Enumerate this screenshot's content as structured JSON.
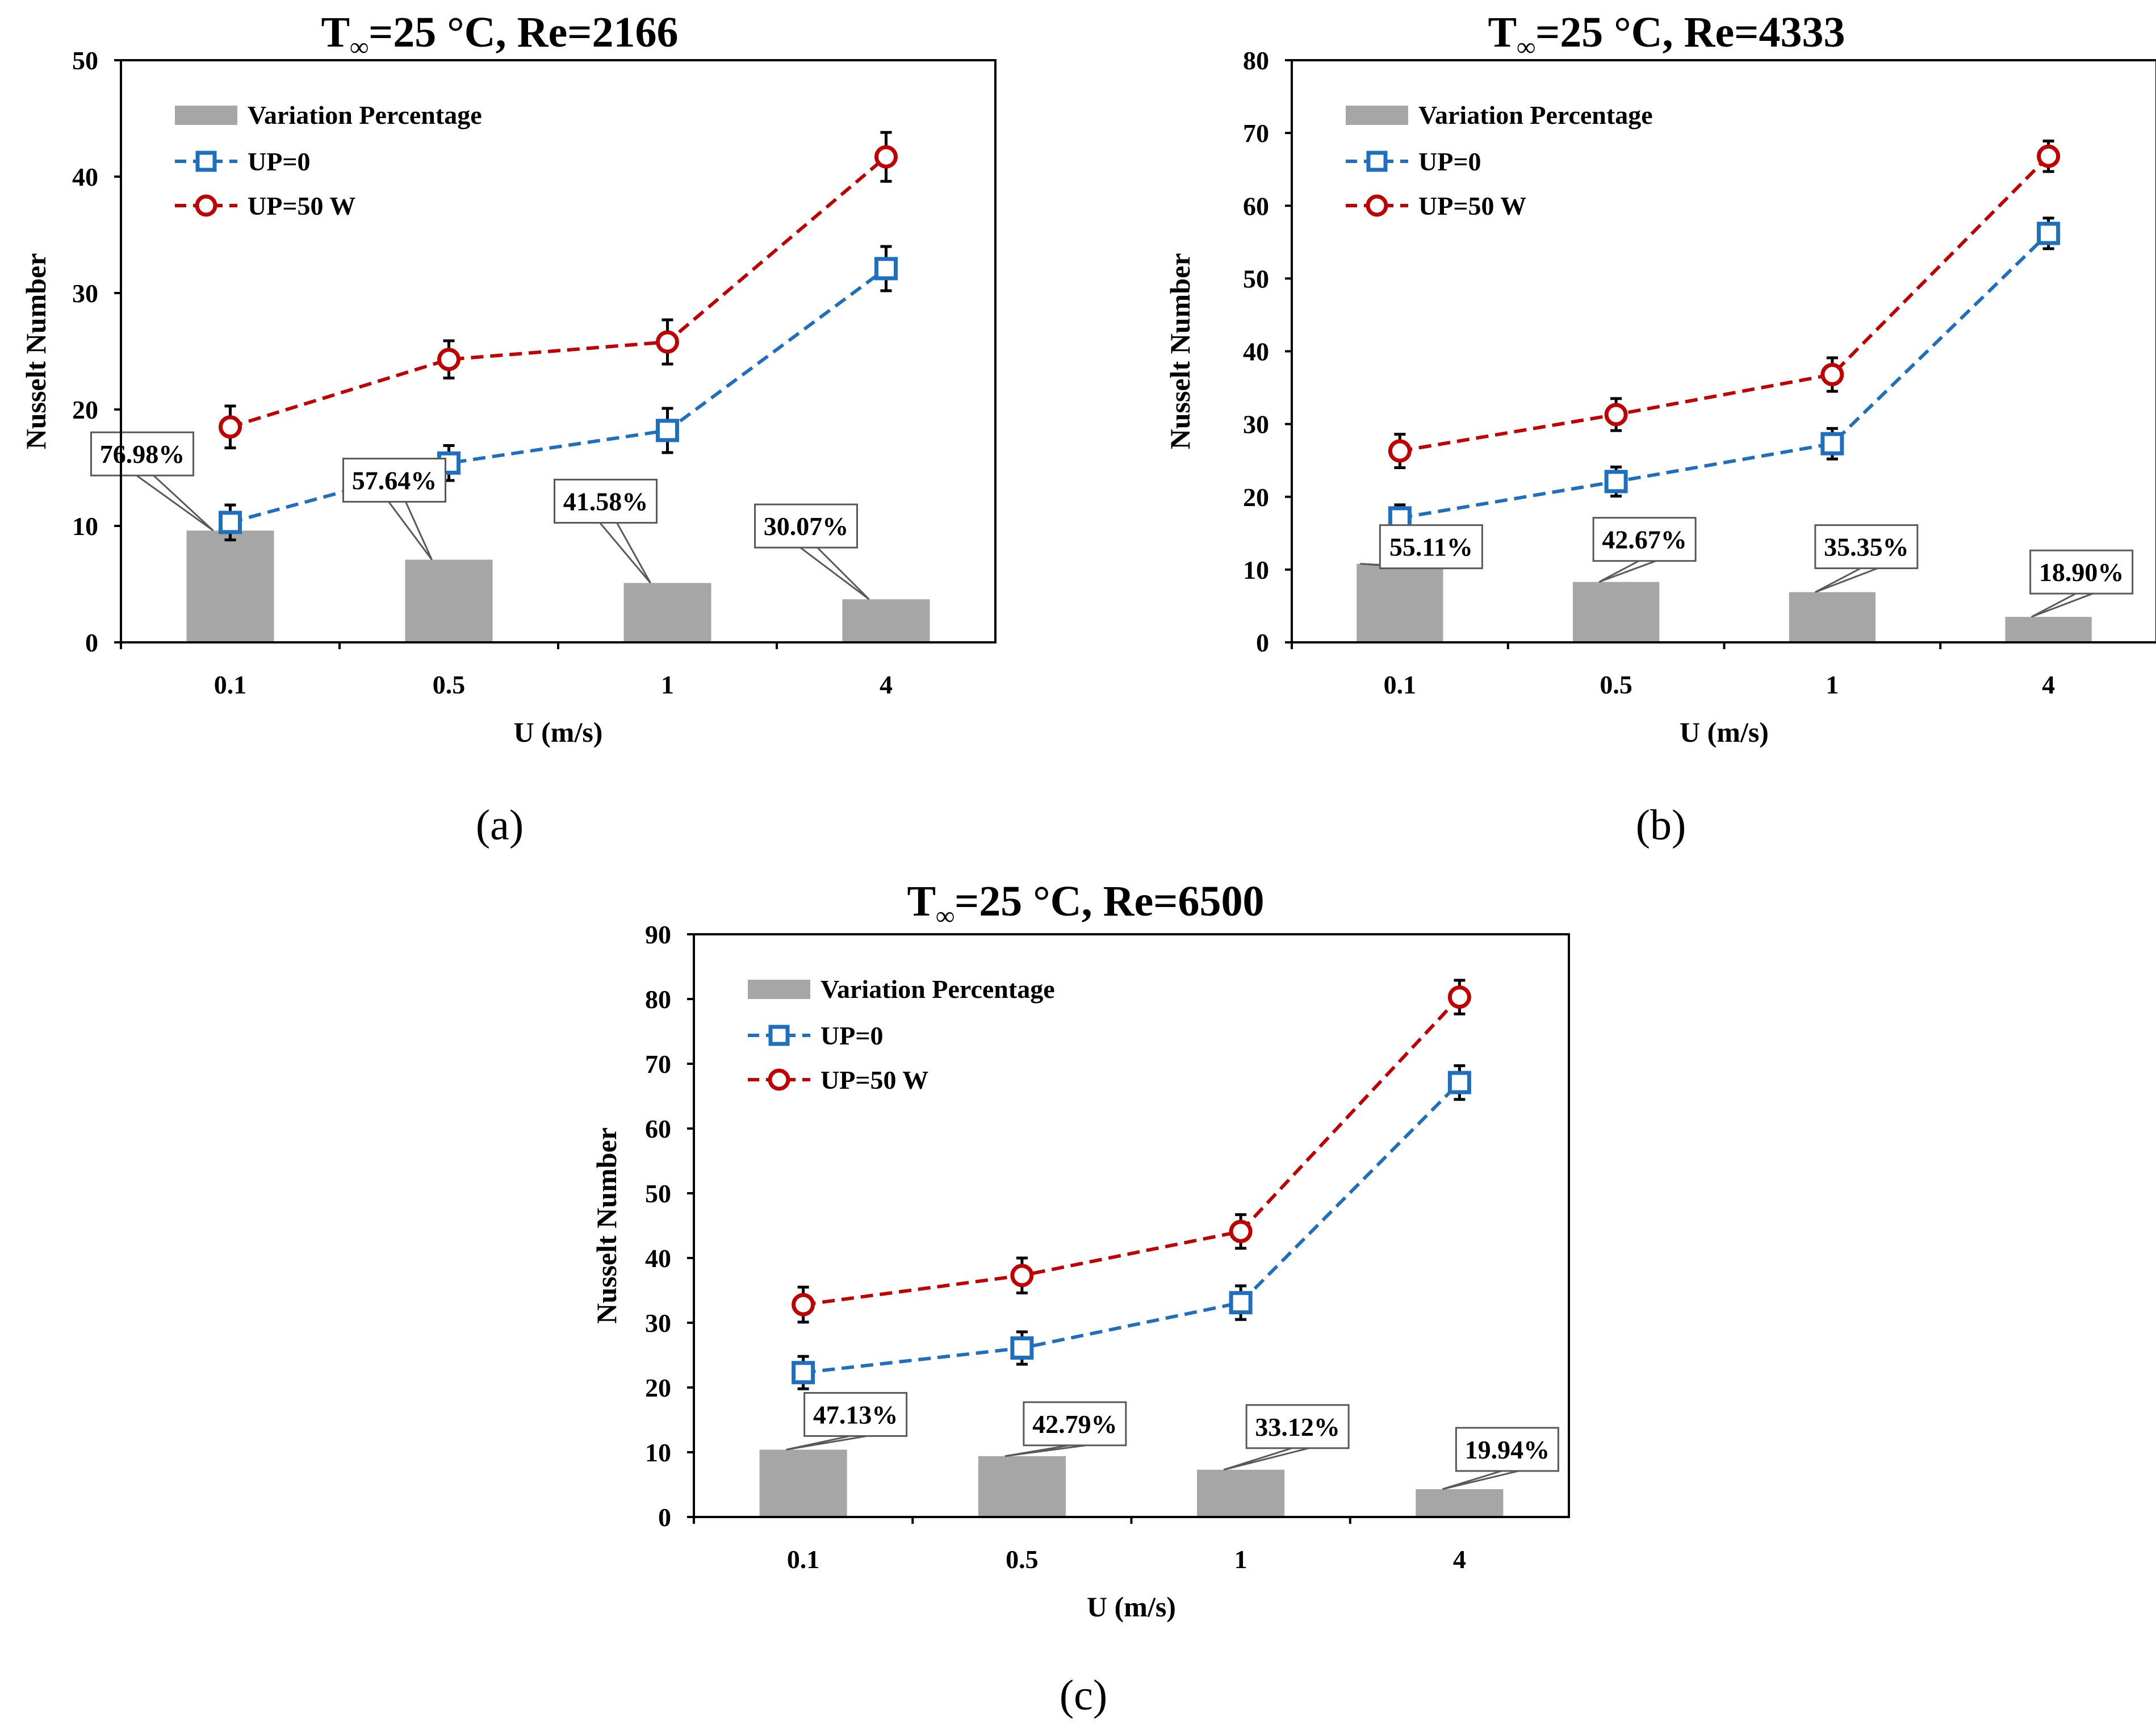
{
  "figure": {
    "panel_labels": [
      "(a)",
      "(b)",
      "(c)"
    ]
  },
  "chart_data": [
    {
      "type": "bar+line",
      "panel": "(a)",
      "title": {
        "prefix": "T",
        "subscript": "∞",
        "suffix": "=25 °C, Re=2166"
      },
      "xlabel": "U (m/s)",
      "ylabel": "Nusselt Number",
      "categories": [
        "0.1",
        "0.5",
        "1",
        "4"
      ],
      "ylim": [
        0,
        50
      ],
      "yticks": [
        0,
        10,
        20,
        30,
        40,
        50
      ],
      "bars": {
        "name": "Variation Percentage",
        "values": [
          9.6,
          7.1,
          5.1,
          3.7
        ],
        "labels": [
          "76.98%",
          "57.64%",
          "41.58%",
          "30.07%"
        ]
      },
      "series": [
        {
          "name": "UP=0",
          "marker": "square",
          "color": "#1f6fbf",
          "values": [
            10.3,
            15.4,
            18.2,
            32.1
          ],
          "error": [
            1.5,
            1.5,
            1.9,
            1.9
          ]
        },
        {
          "name": "UP=50 W",
          "marker": "circle",
          "color": "#c00000",
          "values": [
            18.5,
            24.3,
            25.8,
            41.7
          ],
          "error": [
            1.8,
            1.6,
            1.9,
            2.1
          ]
        }
      ],
      "legend": [
        "Variation Percentage",
        "UP=0",
        "UP=50 W"
      ]
    },
    {
      "type": "bar+line",
      "panel": "(b)",
      "title": {
        "prefix": "T",
        "subscript": "∞",
        "suffix": "=25 °C, Re=4333"
      },
      "xlabel": "U (m/s)",
      "ylabel": "Nusselt Number",
      "categories": [
        "0.1",
        "0.5",
        "1",
        "4"
      ],
      "ylim": [
        0,
        80
      ],
      "yticks": [
        0,
        10,
        20,
        30,
        40,
        50,
        60,
        70,
        80
      ],
      "bars": {
        "name": "Variation Percentage",
        "values": [
          10.8,
          8.3,
          6.9,
          3.5
        ],
        "labels": [
          "55.11%",
          "42.67%",
          "35.35%",
          "18.90%"
        ]
      },
      "series": [
        {
          "name": "UP=0",
          "marker": "square",
          "color": "#1f6fbf",
          "values": [
            17.1,
            22.1,
            27.3,
            56.2
          ],
          "error": [
            1.8,
            2.0,
            2.1,
            2.1
          ]
        },
        {
          "name": "UP=50 W",
          "marker": "circle",
          "color": "#c00000",
          "values": [
            26.3,
            31.3,
            36.8,
            66.8
          ],
          "error": [
            2.3,
            2.2,
            2.3,
            2.1
          ]
        }
      ],
      "legend": [
        "Variation Percentage",
        "UP=0",
        "UP=50 W"
      ]
    },
    {
      "type": "bar+line",
      "panel": "(c)",
      "title": {
        "prefix": "T",
        "subscript": "∞",
        "suffix": "=25 °C, Re=6500"
      },
      "xlabel": "U (m/s)",
      "ylabel": "Nusselt Number",
      "categories": [
        "0.1",
        "0.5",
        "1",
        "4"
      ],
      "ylim": [
        0,
        90
      ],
      "yticks": [
        0,
        10,
        20,
        30,
        40,
        50,
        60,
        70,
        80,
        90
      ],
      "bars": {
        "name": "Variation Percentage",
        "values": [
          10.4,
          9.4,
          7.3,
          4.3
        ],
        "labels": [
          "47.13%",
          "42.79%",
          "33.12%",
          "19.94%"
        ]
      },
      "series": [
        {
          "name": "UP=0",
          "marker": "square",
          "color": "#1f6fbf",
          "values": [
            22.3,
            26.1,
            33.1,
            67.1
          ],
          "error": [
            2.5,
            2.5,
            2.6,
            2.6
          ]
        },
        {
          "name": "UP=50 W",
          "marker": "circle",
          "color": "#c00000",
          "values": [
            32.8,
            37.3,
            44.1,
            80.3
          ],
          "error": [
            2.7,
            2.7,
            2.6,
            2.6
          ]
        }
      ],
      "legend": [
        "Variation Percentage",
        "UP=0",
        "UP=50 W"
      ]
    }
  ]
}
